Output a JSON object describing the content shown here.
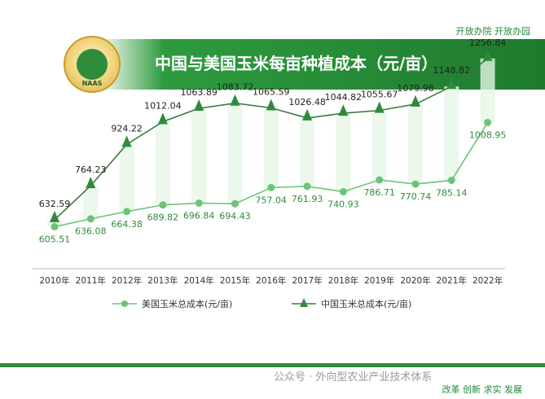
{
  "header": {
    "top_slogan": "开放办院 开放办园",
    "logo_text": "NAAS",
    "title": "中国与美国玉米每亩种植成本（元/亩）"
  },
  "footer": {
    "watermark": "公众号 · 外向型农业产业技术体系",
    "slogan": "改革 创新 求实 发展"
  },
  "colors": {
    "china": "#2e8b3e",
    "usa": "#6cc47a",
    "band": "#2f8c3a"
  },
  "chart_data": {
    "type": "line",
    "categories": [
      "2010年",
      "2011年",
      "2012年",
      "2013年",
      "2014年",
      "2015年",
      "2016年",
      "2017年",
      "2018年",
      "2019年",
      "2020年",
      "2021年",
      "2022年"
    ],
    "series": [
      {
        "name": "美国玉米总成本(元/亩)",
        "values": [
          605.51,
          636.08,
          664.38,
          689.82,
          696.84,
          694.43,
          757.04,
          761.93,
          740.93,
          786.71,
          770.74,
          785.14,
          1008.95
        ]
      },
      {
        "name": "中国玉米总成本(元/亩)",
        "values": [
          632.59,
          764.23,
          924.22,
          1012.04,
          1063.89,
          1083.72,
          1065.59,
          1026.48,
          1044.82,
          1055.67,
          1079.98,
          1148.82,
          1256.84
        ]
      }
    ],
    "value_labels": {
      "usa": [
        "605.51",
        "636.08",
        "664.38",
        "689.82",
        "696.84",
        "694.43",
        "757.04",
        "761.93",
        "740.93",
        "786.71",
        "770.74",
        "785.14",
        "1008.95"
      ],
      "china": [
        "632.59",
        "764.23",
        "924.22",
        "1012.04",
        "1063.89",
        "1083.72",
        "1065.59",
        "1026.48",
        "1044.82",
        "1055.67",
        "1079.98",
        "1148.82",
        "1256.84"
      ]
    },
    "ylim": [
      500,
      1300
    ],
    "grid": false,
    "legend": "bottom"
  }
}
